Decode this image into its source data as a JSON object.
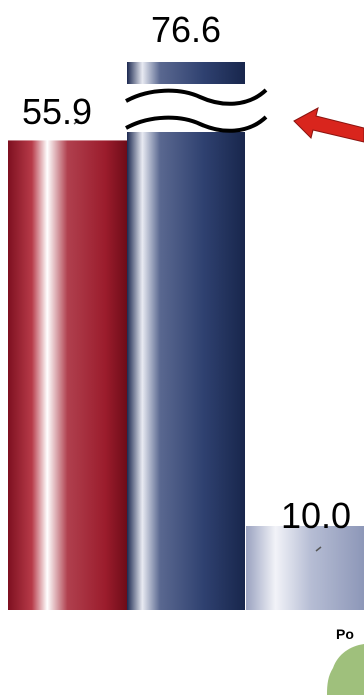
{
  "chart_data": {
    "type": "bar",
    "values": [
      55.9,
      76.6,
      10.0
    ],
    "data_labels": [
      "55.9",
      "76.6",
      "10.0"
    ],
    "axis_break_on": 1,
    "category_fragment": "Po",
    "colors": {
      "bar_red": "#9b1c2c",
      "bar_navy": "#23335a",
      "bar_light": "#aab2cc",
      "arrow": "#d9251d",
      "blob": "#9fc07c"
    },
    "icons": [
      "axis-break-icon",
      "red-arrow-icon",
      "green-blob-icon"
    ]
  }
}
